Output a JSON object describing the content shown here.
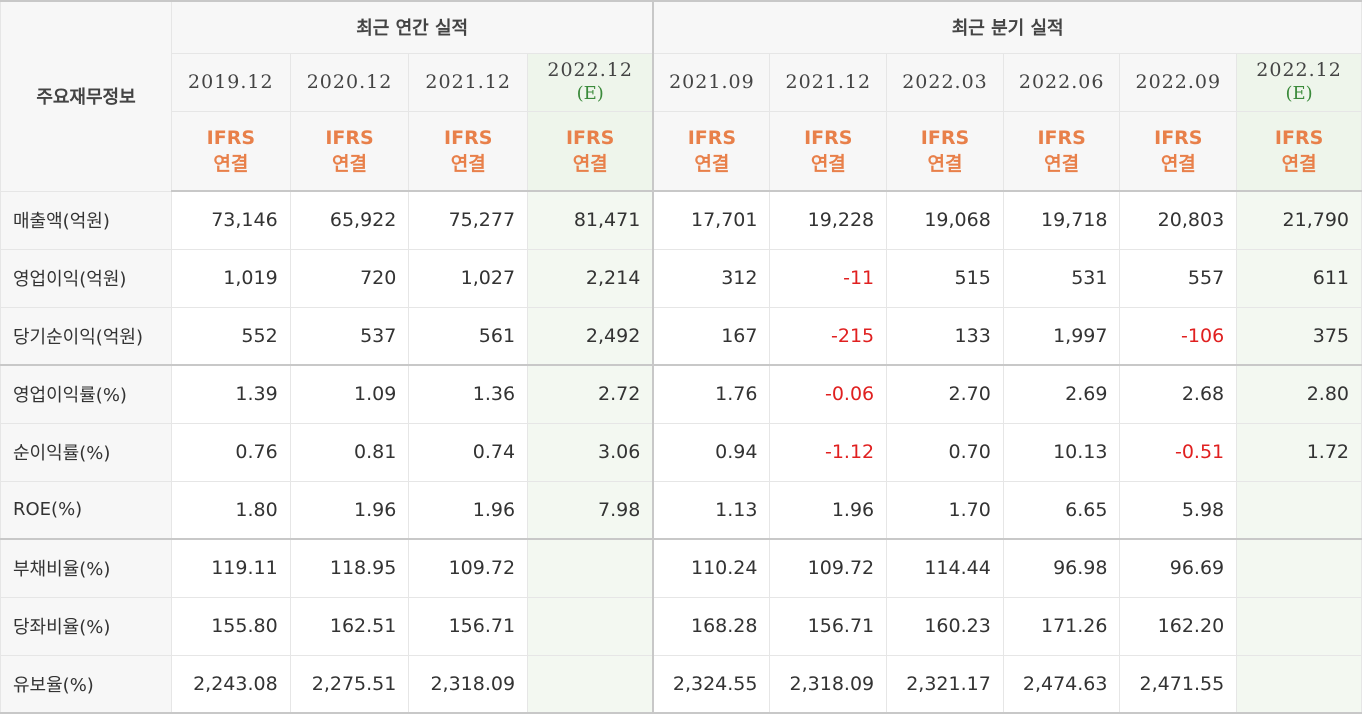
{
  "table": {
    "corner_label": "주요재무정보",
    "groups": [
      {
        "label": "최근 연간 실적",
        "span": 4
      },
      {
        "label": "최근 분기 실적",
        "span": 6
      }
    ],
    "periods": [
      {
        "date": "2019.12",
        "estimate": ""
      },
      {
        "date": "2020.12",
        "estimate": ""
      },
      {
        "date": "2021.12",
        "estimate": ""
      },
      {
        "date": "2022.12",
        "estimate": "(E)"
      },
      {
        "date": "2021.09",
        "estimate": ""
      },
      {
        "date": "2021.12",
        "estimate": ""
      },
      {
        "date": "2022.03",
        "estimate": ""
      },
      {
        "date": "2022.06",
        "estimate": ""
      },
      {
        "date": "2022.09",
        "estimate": ""
      },
      {
        "date": "2022.12",
        "estimate": "(E)"
      }
    ],
    "accounting_type": {
      "line1": "IFRS",
      "line2": "연결"
    },
    "rows": [
      {
        "label": "매출액(억원)",
        "values": [
          "73,146",
          "65,922",
          "75,277",
          "81,471",
          "17,701",
          "19,228",
          "19,068",
          "19,718",
          "20,803",
          "21,790"
        ]
      },
      {
        "label": "영업이익(억원)",
        "values": [
          "1,019",
          "720",
          "1,027",
          "2,214",
          "312",
          "-11",
          "515",
          "531",
          "557",
          "611"
        ]
      },
      {
        "label": "당기순이익(억원)",
        "values": [
          "552",
          "537",
          "561",
          "2,492",
          "167",
          "-215",
          "133",
          "1,997",
          "-106",
          "375"
        ]
      },
      {
        "label": "영업이익률(%)",
        "values": [
          "1.39",
          "1.09",
          "1.36",
          "2.72",
          "1.76",
          "-0.06",
          "2.70",
          "2.69",
          "2.68",
          "2.80"
        ]
      },
      {
        "label": "순이익률(%)",
        "values": [
          "0.76",
          "0.81",
          "0.74",
          "3.06",
          "0.94",
          "-1.12",
          "0.70",
          "10.13",
          "-0.51",
          "1.72"
        ]
      },
      {
        "label": "ROE(%)",
        "values": [
          "1.80",
          "1.96",
          "1.96",
          "7.98",
          "1.13",
          "1.96",
          "1.70",
          "6.65",
          "5.98",
          ""
        ]
      },
      {
        "label": "부채비율(%)",
        "values": [
          "119.11",
          "118.95",
          "109.72",
          "",
          "110.24",
          "109.72",
          "114.44",
          "96.98",
          "96.69",
          ""
        ]
      },
      {
        "label": "당좌비율(%)",
        "values": [
          "155.80",
          "162.51",
          "156.71",
          "",
          "168.28",
          "156.71",
          "160.23",
          "171.26",
          "162.20",
          ""
        ]
      },
      {
        "label": "유보율(%)",
        "values": [
          "2,243.08",
          "2,275.51",
          "2,318.09",
          "",
          "2,324.55",
          "2,318.09",
          "2,321.17",
          "2,474.63",
          "2,471.55",
          ""
        ]
      }
    ],
    "colors": {
      "negative": "#e02020",
      "accounting_type": "#e8804a",
      "estimate_mark": "#3a8a3a",
      "estimate_bg": "#f3f8f1"
    }
  }
}
